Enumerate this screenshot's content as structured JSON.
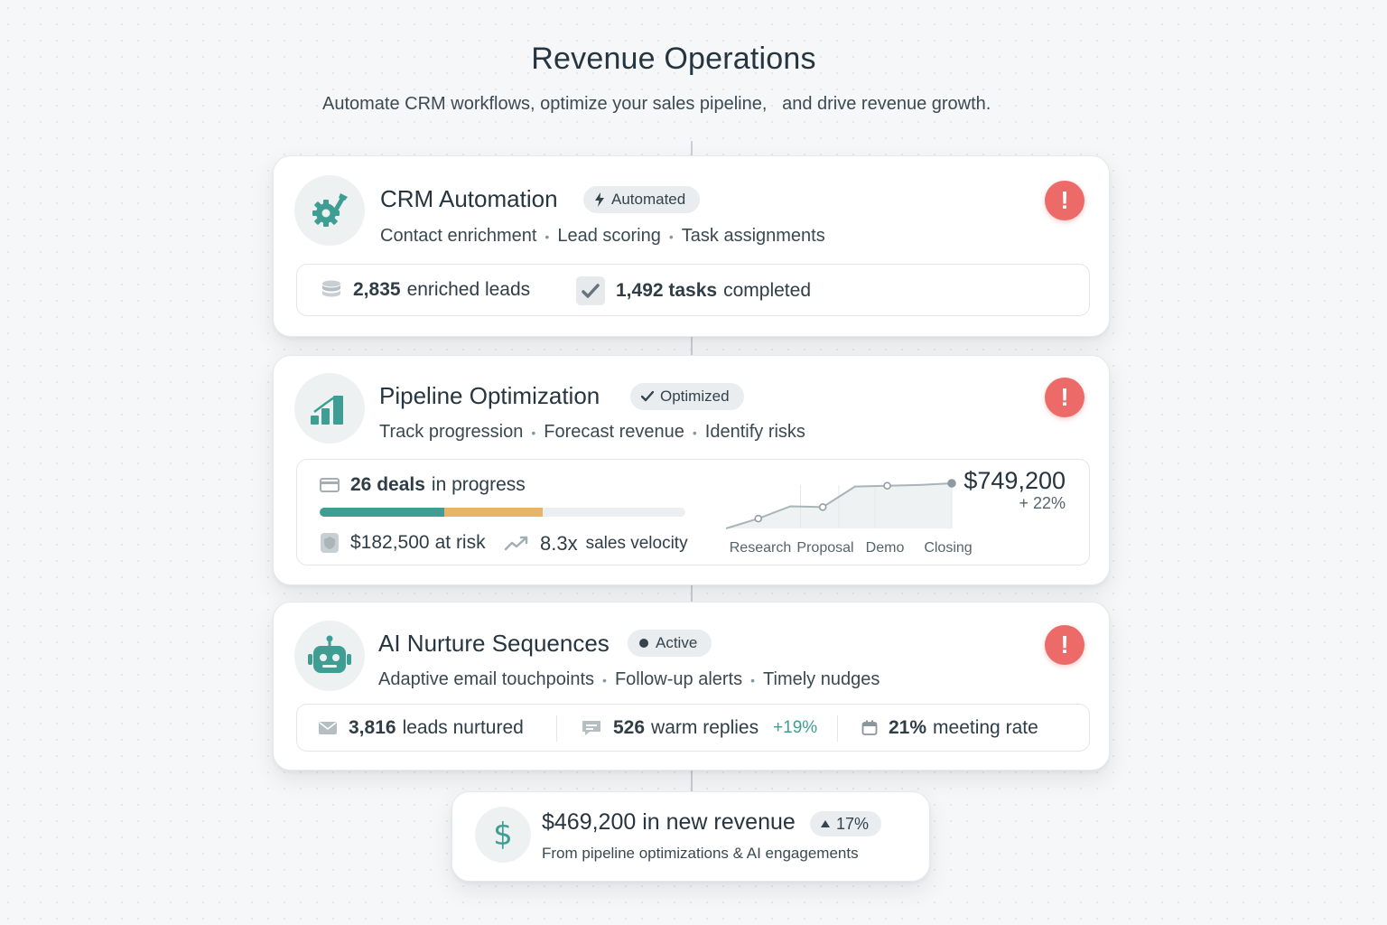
{
  "header": {
    "title": "Revenue Operations",
    "subtitle": "Automate CRM workflows, optimize your sales pipeline,   and drive revenue growth."
  },
  "colors": {
    "accent": "#3f9e94",
    "risk": "#e8b468",
    "alert": "#ec6b69"
  },
  "crm": {
    "icon": "gear-icon",
    "title": "CRM Automation",
    "badge": "Automated",
    "features": [
      "Contact enrichment",
      "Lead scoring",
      "Task assignments"
    ],
    "stats": [
      {
        "icon": "database-icon",
        "value": "2,835",
        "label": "enriched leads"
      },
      {
        "icon": "check-icon",
        "value": "1,492 tasks",
        "label": "completed"
      }
    ]
  },
  "pipeline": {
    "icon": "bar-chart-icon",
    "title": "Pipeline Optimization",
    "badge": "Optimized",
    "features": [
      "Track progression",
      "Forecast revenue",
      "Identify risks"
    ],
    "deals": {
      "value": "26 deals",
      "label": "in progress"
    },
    "progress": {
      "healthy": 0.34,
      "at_risk": 0.27
    },
    "risk": {
      "value": "$182,500",
      "label": "at risk"
    },
    "velocity": {
      "value": "8.3x",
      "label": "sales velocity"
    },
    "forecast": {
      "amount": "$749,200",
      "change": "+ 22%"
    }
  },
  "chart_data": {
    "type": "area",
    "categories": [
      "Research",
      "Proposal",
      "Demo",
      "Closing"
    ],
    "x": [
      0,
      1,
      2,
      3,
      4,
      5,
      6,
      7
    ],
    "values": [
      0,
      12,
      27,
      26,
      51,
      52,
      53,
      55
    ]
  },
  "nurture": {
    "icon": "robot-icon",
    "title": "AI Nurture Sequences",
    "badge": "Active",
    "features": [
      "Adaptive email touchpoints",
      "Follow-up alerts",
      "Timely nudges"
    ],
    "stats": [
      {
        "icon": "mail-icon",
        "value": "3,816",
        "label": "leads nurtured"
      },
      {
        "icon": "chat-icon",
        "value": "526",
        "label": "warm replies",
        "delta": "+19%"
      },
      {
        "icon": "calendar-icon",
        "value": "21%",
        "label": "meeting rate"
      }
    ]
  },
  "summary": {
    "icon": "dollar-icon",
    "headline": "$469,200 in new revenue",
    "change": "17%",
    "caption": "From pipeline optimizations & AI engagements"
  }
}
